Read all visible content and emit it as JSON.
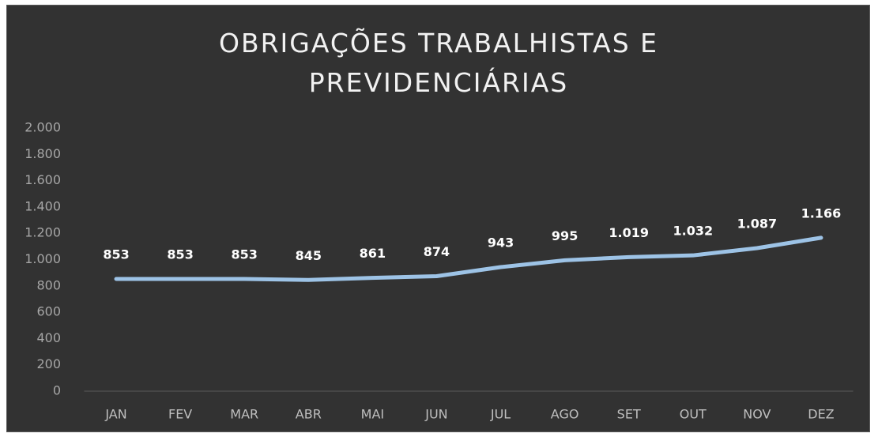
{
  "chart_data": {
    "type": "line",
    "title": "OBRIGAÇÕES TRABALHISTAS E PREVIDENCIÁRIAS",
    "categories": [
      "JAN",
      "FEV",
      "MAR",
      "ABR",
      "MAI",
      "JUN",
      "JUL",
      "AGO",
      "SET",
      "OUT",
      "NOV",
      "DEZ"
    ],
    "series": [
      {
        "name": "Obrigações",
        "color": "#9dc3e6",
        "values": [
          853,
          853,
          853,
          845,
          861,
          874,
          943,
          995,
          1019,
          1032,
          1087,
          1166
        ],
        "value_labels": [
          "853",
          "853",
          "853",
          "845",
          "861",
          "874",
          "943",
          "995",
          "1.019",
          "1.032",
          "1.087",
          "1.166"
        ]
      }
    ],
    "ylim": [
      0,
      2000
    ],
    "yticks": [
      0,
      200,
      400,
      600,
      800,
      {
        "value": 1000,
        "label": "1.000"
      },
      {
        "value": 1200,
        "label": "1.200"
      },
      {
        "value": 1400,
        "label": "1.400"
      },
      {
        "value": 1600,
        "label": "1.600"
      },
      {
        "value": 1800,
        "label": "1.800"
      },
      {
        "value": 2000,
        "label": "2.000"
      }
    ],
    "grid": false,
    "legend": false
  }
}
